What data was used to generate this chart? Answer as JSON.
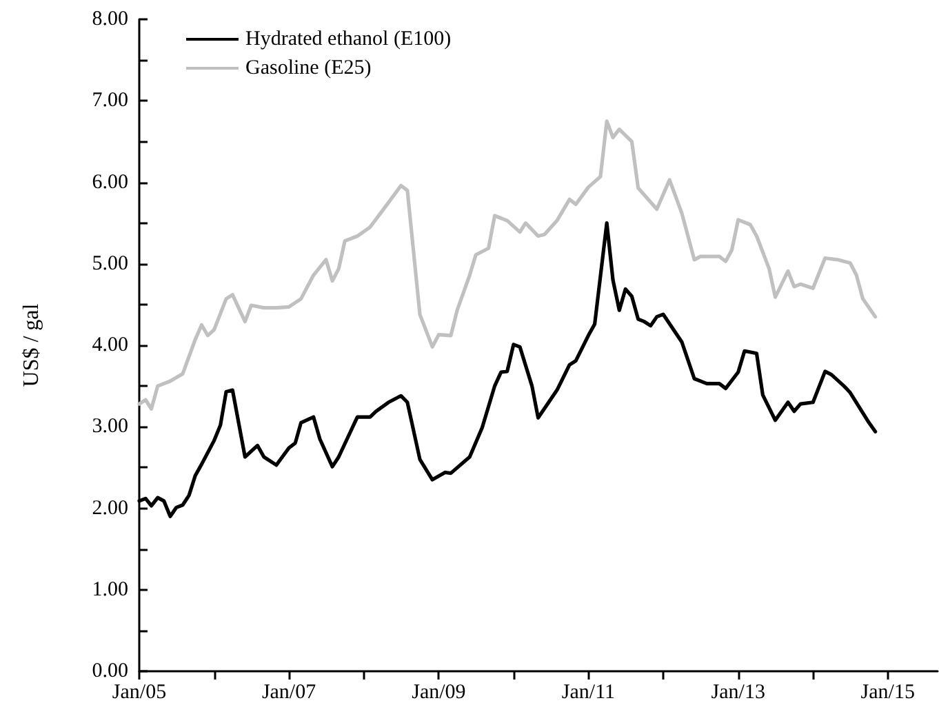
{
  "chart_data": {
    "type": "line",
    "ylabel": "US$ / gal",
    "legend": "top left",
    "grid": false,
    "line_style": "solid",
    "marker": "none",
    "xlim": [
      "2005-01",
      "2015-09"
    ],
    "xticks": [
      {
        "value": "2005-01",
        "label": "Jan/05"
      },
      {
        "value": "2006-01",
        "label": null
      },
      {
        "value": "2007-01",
        "label": "Jan/07"
      },
      {
        "value": "2008-01",
        "label": null
      },
      {
        "value": "2009-01",
        "label": "Jan/09"
      },
      {
        "value": "2010-01",
        "label": null
      },
      {
        "value": "2011-01",
        "label": "Jan/11"
      },
      {
        "value": "2012-01",
        "label": null
      },
      {
        "value": "2013-01",
        "label": "Jan/13"
      },
      {
        "value": "2014-01",
        "label": null
      },
      {
        "value": "2015-01",
        "label": "Jan/15"
      }
    ],
    "ylim": [
      0,
      8
    ],
    "yticks": [
      {
        "value": 0,
        "label": "0.00"
      },
      {
        "value": 0.5,
        "label": null
      },
      {
        "value": 1,
        "label": "1.00"
      },
      {
        "value": 1.5,
        "label": null
      },
      {
        "value": 2,
        "label": "2.00"
      },
      {
        "value": 2.5,
        "label": null
      },
      {
        "value": 3,
        "label": "3.00"
      },
      {
        "value": 3.5,
        "label": null
      },
      {
        "value": 4,
        "label": "4.00"
      },
      {
        "value": 4.5,
        "label": null
      },
      {
        "value": 5,
        "label": "5.00"
      },
      {
        "value": 5.5,
        "label": null
      },
      {
        "value": 6,
        "label": "6.00"
      },
      {
        "value": 6.5,
        "label": null
      },
      {
        "value": 7,
        "label": "7.00"
      },
      {
        "value": 7.5,
        "label": null
      },
      {
        "value": 8,
        "label": "8.00"
      }
    ],
    "series": [
      {
        "name": "Hydrated ethanol (E100)",
        "color": "#000000",
        "x": [
          "2005-01",
          "2005-02",
          "2005-03",
          "2005-04",
          "2005-05",
          "2005-06",
          "2005-07",
          "2005-08",
          "2005-09",
          "2005-10",
          "2005-11",
          "2006-01",
          "2006-02",
          "2006-03",
          "2006-04",
          "2006-06",
          "2006-08",
          "2006-09",
          "2006-11",
          "2007-01",
          "2007-02",
          "2007-03",
          "2007-05",
          "2007-06",
          "2007-08",
          "2007-09",
          "2007-12",
          "2008-02",
          "2008-03",
          "2008-05",
          "2008-07",
          "2008-08",
          "2008-10",
          "2008-12",
          "2009-02",
          "2009-03",
          "2009-06",
          "2009-08",
          "2009-10",
          "2009-11",
          "2009-12",
          "2010-01",
          "2010-02",
          "2010-04",
          "2010-05",
          "2010-08",
          "2010-10",
          "2010-11",
          "2011-01",
          "2011-02",
          "2011-04",
          "2011-05",
          "2011-06",
          "2011-07",
          "2011-08",
          "2011-09",
          "2011-10",
          "2011-11",
          "2011-12",
          "2012-01",
          "2012-04",
          "2012-06",
          "2012-08",
          "2012-10",
          "2012-11",
          "2013-01",
          "2013-02",
          "2013-04",
          "2013-05",
          "2013-07",
          "2013-09",
          "2013-10",
          "2013-11",
          "2014-01",
          "2014-03",
          "2014-04",
          "2014-06",
          "2014-07",
          "2014-10",
          "2014-11"
        ],
        "values": [
          2.09,
          2.12,
          2.03,
          2.13,
          2.09,
          1.9,
          2.01,
          2.04,
          2.16,
          2.4,
          2.54,
          2.83,
          3.02,
          3.43,
          3.45,
          2.63,
          2.77,
          2.63,
          2.53,
          2.74,
          2.8,
          3.05,
          3.12,
          2.85,
          2.51,
          2.63,
          3.12,
          3.12,
          3.19,
          3.3,
          3.38,
          3.3,
          2.6,
          2.35,
          2.44,
          2.43,
          2.63,
          2.99,
          3.5,
          3.67,
          3.68,
          4.01,
          3.98,
          3.5,
          3.11,
          3.45,
          3.76,
          3.81,
          4.12,
          4.26,
          5.5,
          4.8,
          4.43,
          4.69,
          4.6,
          4.32,
          4.29,
          4.24,
          4.35,
          4.38,
          4.04,
          3.59,
          3.53,
          3.53,
          3.47,
          3.67,
          3.93,
          3.9,
          3.39,
          3.08,
          3.3,
          3.19,
          3.28,
          3.3,
          3.68,
          3.64,
          3.5,
          3.42,
          3.05,
          2.94
        ]
      },
      {
        "name": "Gasoline (E25)",
        "color": "#c0c0c0",
        "x": [
          "2005-01",
          "2005-02",
          "2005-03",
          "2005-04",
          "2005-06",
          "2005-08",
          "2005-10",
          "2005-11",
          "2005-12",
          "2006-01",
          "2006-03",
          "2006-04",
          "2006-06",
          "2006-07",
          "2006-09",
          "2006-11",
          "2007-01",
          "2007-03",
          "2007-05",
          "2007-07",
          "2007-08",
          "2007-09",
          "2007-10",
          "2007-12",
          "2008-02",
          "2008-04",
          "2008-07",
          "2008-08",
          "2008-10",
          "2008-12",
          "2009-01",
          "2009-03",
          "2009-04",
          "2009-06",
          "2009-07",
          "2009-09",
          "2009-10",
          "2009-12",
          "2010-02",
          "2010-03",
          "2010-05",
          "2010-06",
          "2010-08",
          "2010-10",
          "2010-11",
          "2011-01",
          "2011-03",
          "2011-04",
          "2011-05",
          "2011-06",
          "2011-08",
          "2011-09",
          "2011-12",
          "2012-02",
          "2012-04",
          "2012-06",
          "2012-07",
          "2012-10",
          "2012-11",
          "2012-12",
          "2013-01",
          "2013-03",
          "2013-04",
          "2013-06",
          "2013-07",
          "2013-09",
          "2013-10",
          "2013-11",
          "2014-01",
          "2014-03",
          "2014-05",
          "2014-06",
          "2014-07",
          "2014-08",
          "2014-09",
          "2014-11"
        ],
        "values": [
          3.28,
          3.33,
          3.22,
          3.5,
          3.56,
          3.65,
          4.07,
          4.25,
          4.12,
          4.19,
          4.57,
          4.62,
          4.29,
          4.49,
          4.46,
          4.46,
          4.47,
          4.57,
          4.86,
          5.05,
          4.79,
          4.94,
          5.28,
          5.34,
          5.45,
          5.65,
          5.96,
          5.9,
          4.38,
          3.98,
          4.13,
          4.12,
          4.43,
          4.86,
          5.11,
          5.19,
          5.59,
          5.53,
          5.39,
          5.5,
          5.34,
          5.36,
          5.53,
          5.79,
          5.73,
          5.94,
          6.07,
          6.75,
          6.55,
          6.65,
          6.5,
          5.93,
          5.67,
          6.03,
          5.62,
          5.05,
          5.09,
          5.09,
          5.03,
          5.17,
          5.54,
          5.48,
          5.34,
          4.94,
          4.59,
          4.91,
          4.72,
          4.75,
          4.7,
          5.07,
          5.05,
          5.03,
          5.01,
          4.86,
          4.57,
          4.35
        ]
      }
    ]
  }
}
